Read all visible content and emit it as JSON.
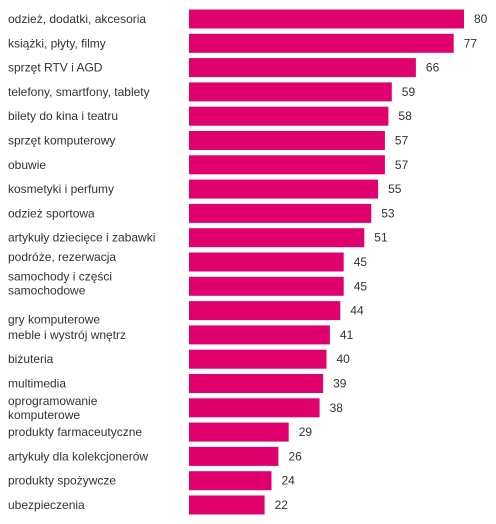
{
  "chart_data": {
    "type": "bar",
    "orientation": "horizontal",
    "bar_color": "#E0006E",
    "text_color": "#333333",
    "grid": false,
    "legend": "none",
    "categories": [
      "odzież, dodatki, akcesoria",
      "książki, płyty, filmy",
      "sprzęt RTV i AGD",
      "telefony, smartfony, tablety",
      "bilety do kina i teatru",
      "sprzęt komputerowy",
      "obuwie",
      "kosmetyki i perfumy",
      "odzież sportowa",
      "artykuły dziecięce i zabawki",
      "podróże, rezerwacja",
      "samochody i części samochodowe",
      "gry komputerowe",
      "meble i wystrój wnętrz",
      "biżuteria",
      "multimedia",
      "oprogramowanie komputerowe",
      "produkty farmaceutyczne",
      "artykuły dla kolekcjonerów",
      "produkty spożywcze",
      "ubezpieczenia"
    ],
    "values": [
      80,
      77,
      66,
      59,
      58,
      57,
      57,
      55,
      53,
      51,
      45,
      45,
      44,
      41,
      40,
      39,
      38,
      29,
      26,
      24,
      22
    ],
    "xlim": [
      0,
      80
    ]
  }
}
